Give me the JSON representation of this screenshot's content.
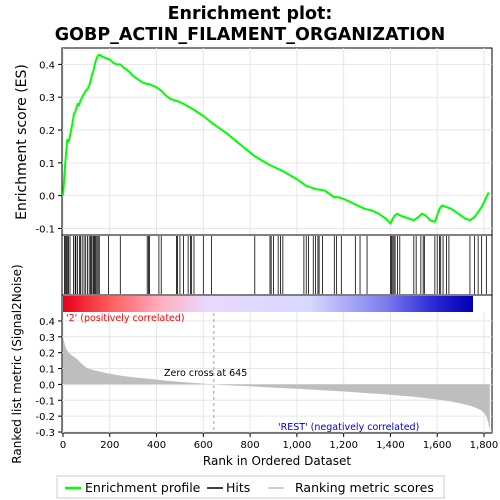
{
  "chart_data": [
    {
      "type": "line",
      "title_line1": "Enrichment plot:",
      "title_line2": "GOBP_ACTIN_FILAMENT_ORGANIZATION",
      "ylabel": "Enrichment score (ES)",
      "ylim": [
        -0.12,
        0.45
      ],
      "yticks": [
        "0.4",
        "0.3",
        "0.2",
        "0.1",
        "0.0",
        "-0.1"
      ],
      "yticks_values": [
        0.4,
        0.3,
        0.2,
        0.1,
        0.0,
        -0.1
      ],
      "xlim": [
        0,
        1830
      ],
      "grid": true,
      "series": [
        {
          "name": "Enrichment profile",
          "color": "#00ff00",
          "x": [
            0,
            5,
            10,
            18,
            25,
            32,
            40,
            47,
            52,
            58,
            63,
            68,
            75,
            82,
            90,
            98,
            105,
            112,
            118,
            125,
            130,
            136,
            142,
            148,
            155,
            165,
            180,
            200,
            215,
            230,
            245,
            260,
            280,
            300,
            320,
            340,
            360,
            370,
            385,
            400,
            420,
            440,
            460,
            480,
            500,
            520,
            540,
            560,
            580,
            600,
            640,
            700,
            760,
            820,
            880,
            940,
            1000,
            1040,
            1060,
            1080,
            1100,
            1120,
            1140,
            1160,
            1180,
            1200,
            1230,
            1260,
            1290,
            1320,
            1350,
            1380,
            1400,
            1410,
            1420,
            1430,
            1440,
            1460,
            1480,
            1500,
            1520,
            1535,
            1550,
            1570,
            1590,
            1600,
            1610,
            1620,
            1640,
            1660,
            1680,
            1700,
            1720,
            1740,
            1760,
            1780,
            1790,
            1800,
            1810,
            1820
          ],
          "y": [
            0.0,
            0.05,
            0.1,
            0.17,
            0.165,
            0.19,
            0.22,
            0.25,
            0.255,
            0.27,
            0.28,
            0.275,
            0.29,
            0.3,
            0.31,
            0.32,
            0.325,
            0.335,
            0.35,
            0.37,
            0.38,
            0.4,
            0.415,
            0.425,
            0.43,
            0.425,
            0.42,
            0.415,
            0.405,
            0.4,
            0.4,
            0.39,
            0.38,
            0.365,
            0.355,
            0.345,
            0.34,
            0.34,
            0.335,
            0.33,
            0.32,
            0.305,
            0.295,
            0.29,
            0.285,
            0.278,
            0.27,
            0.262,
            0.252,
            0.243,
            0.22,
            0.19,
            0.155,
            0.12,
            0.095,
            0.075,
            0.05,
            0.03,
            0.025,
            0.02,
            0.018,
            0.015,
            0.005,
            -0.005,
            -0.005,
            -0.01,
            -0.02,
            -0.03,
            -0.04,
            -0.045,
            -0.055,
            -0.07,
            -0.085,
            -0.07,
            -0.06,
            -0.055,
            -0.06,
            -0.065,
            -0.07,
            -0.075,
            -0.065,
            -0.055,
            -0.06,
            -0.075,
            -0.08,
            -0.06,
            -0.04,
            -0.03,
            -0.035,
            -0.04,
            -0.05,
            -0.06,
            -0.07,
            -0.075,
            -0.065,
            -0.045,
            -0.035,
            -0.02,
            -0.005,
            0.01
          ]
        }
      ]
    },
    {
      "type": "hits",
      "series": [
        {
          "name": "Hits",
          "color": "#000000",
          "x": [
            6,
            10,
            15,
            20,
            24,
            30,
            45,
            52,
            55,
            62,
            70,
            75,
            82,
            90,
            97,
            105,
            112,
            118,
            122,
            128,
            132,
            136,
            140,
            145,
            150,
            155,
            195,
            245,
            360,
            365,
            370,
            410,
            420,
            485,
            490,
            500,
            515,
            535,
            545,
            550,
            560,
            600,
            635,
            820,
            885,
            890,
            900,
            920,
            930,
            940,
            1030,
            1040,
            1050,
            1070,
            1080,
            1090,
            1095,
            1110,
            1160,
            1170,
            1190,
            1250,
            1270,
            1300,
            1400,
            1405,
            1410,
            1415,
            1420,
            1430,
            1440,
            1500,
            1510,
            1530,
            1540,
            1545,
            1590,
            1600,
            1610,
            1615,
            1625,
            1640,
            1650,
            1740,
            1760,
            1775,
            1790,
            1810
          ]
        }
      ]
    },
    {
      "type": "area",
      "ylabel": "Ranked list metric (Signal2Noise)",
      "xlabel": "Rank in Ordered Dataset",
      "ylim": [
        -0.3,
        0.45
      ],
      "yticks": [
        "0.4",
        "0.3",
        "0.2",
        "0.1",
        "0.0",
        "-0.1",
        "-0.2",
        "-0.3"
      ],
      "yticks_values": [
        0.4,
        0.3,
        0.2,
        0.1,
        0.0,
        -0.1,
        -0.2,
        -0.3
      ],
      "xticks": [
        "0",
        "200",
        "400",
        "600",
        "800",
        "1,000",
        "1,200",
        "1,400",
        "1,600",
        "1,800"
      ],
      "xticks_values": [
        0,
        200,
        400,
        600,
        800,
        1000,
        1200,
        1400,
        1600,
        1800
      ],
      "zero_cross_label": "Zero cross at 645",
      "zero_cross": 645,
      "pos_label": "'2' (positively correlated)",
      "neg_label": "'REST' (negatively correlated)",
      "series": [
        {
          "name": "Ranking metric scores",
          "color": "#bebebe",
          "x": [
            0,
            3,
            8,
            15,
            25,
            40,
            60,
            80,
            100,
            130,
            160,
            200,
            250,
            300,
            350,
            400,
            450,
            500,
            550,
            600,
            645,
            700,
            800,
            900,
            1000,
            1100,
            1200,
            1300,
            1400,
            1500,
            1600,
            1650,
            1700,
            1740,
            1770,
            1790,
            1800,
            1810,
            1818,
            1822,
            1825
          ],
          "y": [
            0.3,
            0.28,
            0.25,
            0.22,
            0.2,
            0.18,
            0.16,
            0.13,
            0.105,
            0.09,
            0.08,
            0.067,
            0.055,
            0.045,
            0.038,
            0.03,
            0.022,
            0.016,
            0.01,
            0.005,
            0.0,
            -0.005,
            -0.012,
            -0.02,
            -0.028,
            -0.036,
            -0.045,
            -0.055,
            -0.065,
            -0.078,
            -0.095,
            -0.105,
            -0.12,
            -0.135,
            -0.15,
            -0.165,
            -0.18,
            -0.2,
            -0.24,
            -0.27,
            -0.29
          ]
        }
      ]
    }
  ],
  "legend": {
    "items": [
      {
        "label": "Enrichment profile",
        "color": "#00ff00"
      },
      {
        "label": "Hits",
        "color": "#000000"
      },
      {
        "label": "Ranking metric scores",
        "color": "#bebebe"
      }
    ]
  },
  "colors": {
    "positive_label": "#ff0000",
    "negative_label": "#0000cc",
    "zero_cross_label": "#000000"
  }
}
